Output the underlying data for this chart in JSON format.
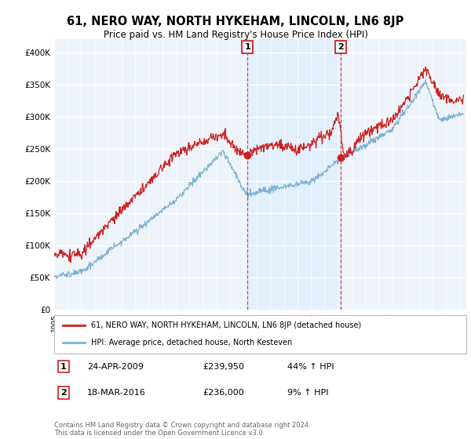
{
  "title": "61, NERO WAY, NORTH HYKEHAM, LINCOLN, LN6 8JP",
  "subtitle": "Price paid vs. HM Land Registry's House Price Index (HPI)",
  "ylabel_ticks": [
    "£0",
    "£50K",
    "£100K",
    "£150K",
    "£200K",
    "£250K",
    "£300K",
    "£350K",
    "£400K"
  ],
  "ytick_values": [
    0,
    50000,
    100000,
    150000,
    200000,
    250000,
    300000,
    350000,
    400000
  ],
  "ylim": [
    0,
    420000
  ],
  "xlim_start": 1995.0,
  "xlim_end": 2025.5,
  "hpi_color": "#7ab3d4",
  "hpi_fill_color": "#d6e8f5",
  "price_color": "#cc2222",
  "vline_color": "#cc2222",
  "shade_color": "#ddeeff",
  "marker1_x": 2009.3,
  "marker1_y": 239950,
  "marker2_x": 2016.2,
  "marker2_y": 236000,
  "legend_entries": [
    "61, NERO WAY, NORTH HYKEHAM, LINCOLN, LN6 8JP (detached house)",
    "HPI: Average price, detached house, North Kesteven"
  ],
  "table_row1": [
    "1",
    "24-APR-2009",
    "£239,950",
    "44% ↑ HPI"
  ],
  "table_row2": [
    "2",
    "18-MAR-2016",
    "£236,000",
    "9% ↑ HPI"
  ],
  "footer": "Contains HM Land Registry data © Crown copyright and database right 2024.\nThis data is licensed under the Open Government Licence v3.0.",
  "background_color": "#ffffff",
  "plot_bg_color": "#eef3fa"
}
